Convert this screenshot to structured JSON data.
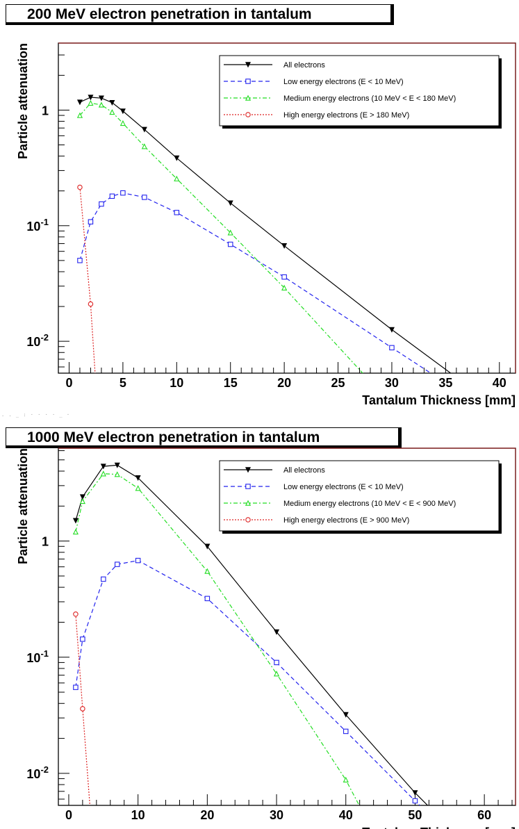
{
  "chart_data": [
    {
      "type": "line",
      "title": "200 MeV electron penetration in tantalum",
      "xlabel": "Tantalum Thickness [mm]",
      "ylabel": "Particle attenuation",
      "yscale": "log",
      "xlim": [
        -1,
        41.5
      ],
      "ylim": [
        0.0053,
        3.8
      ],
      "xticks": [
        0,
        5,
        10,
        15,
        20,
        25,
        30,
        35,
        40
      ],
      "xtick_labels": [
        "0",
        "5",
        "10",
        "15",
        "20",
        "25",
        "30",
        "35",
        "40"
      ],
      "yticks": [
        1,
        0.1,
        0.01
      ],
      "ytick_labels": [
        [
          "1",
          ""
        ],
        [
          "10",
          "-1"
        ],
        [
          "10",
          "-2"
        ]
      ],
      "legend_position": "top-right",
      "grid": false,
      "series": [
        {
          "name": "All electrons",
          "color": "#000000",
          "dash": "",
          "marker": "triangle-down",
          "x": [
            1,
            2,
            3,
            4,
            5,
            7,
            10,
            15,
            20,
            30,
            36.5
          ],
          "y": [
            1.17,
            1.29,
            1.27,
            1.16,
            0.98,
            0.68,
            0.385,
            0.157,
            0.067,
            0.0126,
            0.0045
          ],
          "marked": [
            true,
            true,
            true,
            true,
            true,
            true,
            true,
            true,
            true,
            true,
            false
          ]
        },
        {
          "name": "Low energy electrons (E < 10 MeV)",
          "color": "#2222ee",
          "dash": "6,4",
          "marker": "square",
          "x": [
            1,
            2,
            3,
            4,
            5,
            7,
            10,
            15,
            20,
            30,
            36
          ],
          "y": [
            0.05,
            0.108,
            0.154,
            0.18,
            0.192,
            0.176,
            0.13,
            0.069,
            0.036,
            0.0088,
            0.0038
          ],
          "marked": [
            true,
            true,
            true,
            true,
            true,
            true,
            true,
            true,
            true,
            true,
            false
          ]
        },
        {
          "name": "Medium energy electrons (10 MeV < E < 180 MeV)",
          "color": "#22dd22",
          "dash": "6,3,2,3",
          "marker": "triangle-up",
          "x": [
            1,
            2,
            3,
            4,
            5,
            7,
            10,
            15,
            20,
            28.5
          ],
          "y": [
            0.9,
            1.15,
            1.11,
            0.96,
            0.77,
            0.485,
            0.255,
            0.087,
            0.029,
            0.004
          ],
          "marked": [
            true,
            true,
            true,
            true,
            true,
            true,
            true,
            true,
            true,
            false
          ]
        },
        {
          "name": "High energy electrons (E > 180 MeV)",
          "color": "#dd2222",
          "dash": "2,2",
          "marker": "circle",
          "x": [
            1,
            2,
            2.5
          ],
          "y": [
            0.215,
            0.021,
            0.004
          ],
          "marked": [
            true,
            true,
            false
          ]
        }
      ]
    },
    {
      "type": "line",
      "title": "1000 MeV electron penetration in tantalum",
      "xlabel": "Tantalum Thickness [mm]",
      "ylabel": "Particle attenuation",
      "yscale": "log",
      "xlim": [
        -1.5,
        64.5
      ],
      "ylim": [
        0.0053,
        6.3
      ],
      "xticks": [
        0,
        10,
        20,
        30,
        40,
        50,
        60
      ],
      "xtick_labels": [
        "0",
        "10",
        "20",
        "30",
        "40",
        "50",
        "60"
      ],
      "yticks": [
        1,
        0.1,
        0.01
      ],
      "ytick_labels": [
        [
          "1",
          ""
        ],
        [
          "10",
          "-1"
        ],
        [
          "10",
          "-2"
        ]
      ],
      "legend_position": "top-right",
      "grid": false,
      "series": [
        {
          "name": "All electrons",
          "color": "#000000",
          "dash": "",
          "marker": "triangle-down",
          "x": [
            1,
            2,
            5,
            7,
            10,
            20,
            30,
            40,
            50,
            53
          ],
          "y": [
            1.5,
            2.4,
            4.4,
            4.5,
            3.5,
            0.9,
            0.165,
            0.032,
            0.0068,
            0.0045
          ],
          "marked": [
            true,
            true,
            true,
            true,
            true,
            true,
            true,
            true,
            true,
            false
          ]
        },
        {
          "name": "Low energy electrons (E < 10 MeV)",
          "color": "#2222ee",
          "dash": "6,4",
          "marker": "square",
          "x": [
            1,
            2,
            5,
            7,
            10,
            20,
            30,
            40,
            50,
            52.5
          ],
          "y": [
            0.055,
            0.143,
            0.47,
            0.63,
            0.68,
            0.32,
            0.09,
            0.023,
            0.0058,
            0.0042
          ],
          "marked": [
            true,
            true,
            true,
            true,
            true,
            true,
            true,
            true,
            true,
            false
          ]
        },
        {
          "name": "Medium energy electrons (10 MeV < E < 900 MeV)",
          "color": "#22dd22",
          "dash": "6,3,2,3",
          "marker": "triangle-up",
          "x": [
            1,
            2,
            5,
            7,
            10,
            20,
            30,
            40,
            43
          ],
          "y": [
            1.2,
            2.2,
            3.8,
            3.75,
            2.85,
            0.55,
            0.072,
            0.0088,
            0.004
          ],
          "marked": [
            true,
            true,
            true,
            true,
            true,
            true,
            true,
            true,
            false
          ]
        },
        {
          "name": "High energy electrons (E > 900 MeV)",
          "color": "#dd2222",
          "dash": "2,2",
          "marker": "circle",
          "x": [
            1,
            2,
            3.2
          ],
          "y": [
            0.235,
            0.036,
            0.004
          ],
          "marked": [
            true,
            true,
            false
          ]
        }
      ]
    }
  ],
  "stray_text": ". . _ : · · · · _ ·"
}
